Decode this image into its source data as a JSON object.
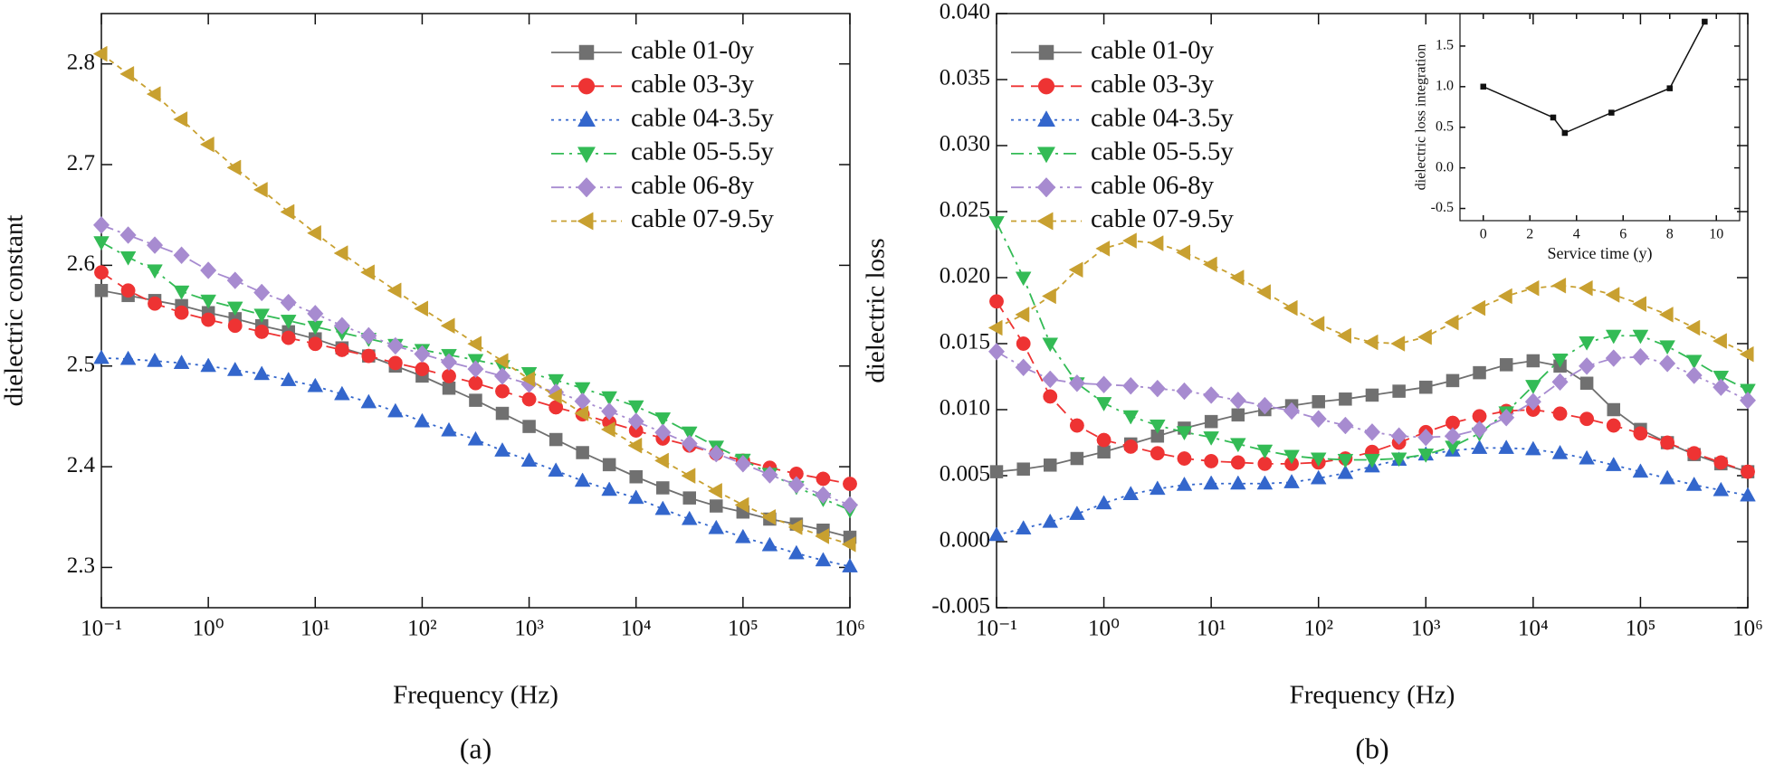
{
  "chart_data": [
    {
      "type": "line",
      "caption": "(a)",
      "x_label": "Frequency (Hz)",
      "y_label": "dielectric constant",
      "xlog": true,
      "legend": "upper right",
      "x": [
        0.1,
        0.178,
        0.316,
        0.562,
        1,
        1.78,
        3.16,
        5.62,
        10,
        17.8,
        31.6,
        56.2,
        100,
        178,
        316,
        562,
        1000,
        1780,
        3160,
        5620,
        10000,
        17800,
        31600,
        56200,
        100000,
        178000,
        316000,
        562000,
        1000000
      ],
      "xlim": [
        0.1,
        1000000
      ],
      "xticks": [
        {
          "value": 0.1,
          "label": "10⁻¹"
        },
        {
          "value": 1,
          "label": "10⁰"
        },
        {
          "value": 10,
          "label": "10¹"
        },
        {
          "value": 100,
          "label": "10²"
        },
        {
          "value": 1000,
          "label": "10³"
        },
        {
          "value": 10000,
          "label": "10⁴"
        },
        {
          "value": 100000,
          "label": "10⁵"
        },
        {
          "value": 1000000,
          "label": "10⁶"
        }
      ],
      "ylim": [
        2.26,
        2.85
      ],
      "yticks": [
        2.3,
        2.4,
        2.5,
        2.6,
        2.7,
        2.8
      ],
      "series": [
        {
          "name": "cable 01-0y",
          "color": "#707070",
          "marker": "square",
          "line_style": "solid",
          "values": [
            2.575,
            2.57,
            2.565,
            2.56,
            2.553,
            2.547,
            2.54,
            2.534,
            2.527,
            2.518,
            2.51,
            2.5,
            2.49,
            2.478,
            2.466,
            2.453,
            2.44,
            2.427,
            2.414,
            2.402,
            2.39,
            2.379,
            2.369,
            2.361,
            2.355,
            2.348,
            2.343,
            2.337,
            2.33
          ]
        },
        {
          "name": "cable 03-3y",
          "color": "#ee3333",
          "marker": "circle",
          "line_style": "dashed",
          "values": [
            2.593,
            2.575,
            2.562,
            2.553,
            2.546,
            2.54,
            2.534,
            2.528,
            2.522,
            2.516,
            2.51,
            2.503,
            2.497,
            2.49,
            2.483,
            2.475,
            2.467,
            2.459,
            2.452,
            2.444,
            2.436,
            2.428,
            2.421,
            2.413,
            2.406,
            2.399,
            2.393,
            2.388,
            2.383
          ]
        },
        {
          "name": "cable 04-3.5y",
          "color": "#3366cc",
          "marker": "triangle-up",
          "line_style": "dotted",
          "values": [
            2.508,
            2.507,
            2.505,
            2.503,
            2.5,
            2.496,
            2.492,
            2.486,
            2.48,
            2.472,
            2.464,
            2.455,
            2.445,
            2.436,
            2.427,
            2.416,
            2.406,
            2.396,
            2.386,
            2.377,
            2.369,
            2.358,
            2.348,
            2.339,
            2.33,
            2.322,
            2.314,
            2.307,
            2.301
          ]
        },
        {
          "name": "cable 05-5.5y",
          "color": "#33bb55",
          "marker": "triangle-down",
          "line_style": "dashdot",
          "values": [
            2.623,
            2.608,
            2.595,
            2.574,
            2.565,
            2.558,
            2.551,
            2.545,
            2.539,
            2.533,
            2.527,
            2.521,
            2.516,
            2.511,
            2.506,
            2.5,
            2.493,
            2.486,
            2.478,
            2.469,
            2.46,
            2.448,
            2.434,
            2.42,
            2.407,
            2.393,
            2.38,
            2.368,
            2.357
          ]
        },
        {
          "name": "cable 06-8y",
          "color": "#a78bd0",
          "marker": "diamond",
          "line_style": "dashdotdot",
          "values": [
            2.64,
            2.63,
            2.62,
            2.61,
            2.595,
            2.585,
            2.573,
            2.563,
            2.552,
            2.54,
            2.53,
            2.52,
            2.512,
            2.504,
            2.497,
            2.49,
            2.482,
            2.474,
            2.465,
            2.455,
            2.445,
            2.434,
            2.423,
            2.413,
            2.403,
            2.392,
            2.382,
            2.372,
            2.362
          ]
        },
        {
          "name": "cable 07-9.5y",
          "color": "#c8a030",
          "marker": "triangle-left",
          "line_style": "shortdash",
          "values": [
            2.81,
            2.79,
            2.77,
            2.745,
            2.72,
            2.697,
            2.675,
            2.653,
            2.632,
            2.612,
            2.593,
            2.575,
            2.557,
            2.54,
            2.522,
            2.505,
            2.487,
            2.47,
            2.453,
            2.437,
            2.421,
            2.406,
            2.391,
            2.376,
            2.362,
            2.35,
            2.34,
            2.331,
            2.323
          ]
        }
      ]
    },
    {
      "type": "line",
      "caption": "(b)",
      "x_label": "Frequency (Hz)",
      "y_label": "dielectric loss",
      "xlog": true,
      "legend": "upper left",
      "x": [
        0.1,
        0.178,
        0.316,
        0.562,
        1,
        1.78,
        3.16,
        5.62,
        10,
        17.8,
        31.6,
        56.2,
        100,
        178,
        316,
        562,
        1000,
        1780,
        3160,
        5620,
        10000,
        17800,
        31600,
        56200,
        100000,
        178000,
        316000,
        562000,
        1000000
      ],
      "xlim": [
        0.1,
        1000000
      ],
      "xticks": [
        {
          "value": 0.1,
          "label": "10⁻¹"
        },
        {
          "value": 1,
          "label": "10⁰"
        },
        {
          "value": 10,
          "label": "10¹"
        },
        {
          "value": 100,
          "label": "10²"
        },
        {
          "value": 1000,
          "label": "10³"
        },
        {
          "value": 10000,
          "label": "10⁴"
        },
        {
          "value": 100000,
          "label": "10⁵"
        },
        {
          "value": 1000000,
          "label": "10⁶"
        }
      ],
      "ylim": [
        -0.005,
        0.04
      ],
      "yticks": [
        -0.005,
        {
          "value": 0,
          "label": "0.000"
        },
        0.005,
        {
          "value": 0.01,
          "label": "0.010"
        },
        0.015,
        {
          "value": 0.02,
          "label": "0.020"
        },
        0.025,
        {
          "value": 0.03,
          "label": "0.030"
        },
        0.035,
        {
          "value": 0.04,
          "label": "0.040"
        }
      ],
      "series": [
        {
          "name": "cable 01-0y",
          "color": "#707070",
          "marker": "square",
          "line_style": "solid",
          "values": [
            0.0053,
            0.0055,
            0.0058,
            0.0063,
            0.0068,
            0.0074,
            0.008,
            0.0086,
            0.0091,
            0.0096,
            0.01,
            0.0103,
            0.0106,
            0.0108,
            0.0111,
            0.0114,
            0.0117,
            0.0122,
            0.0128,
            0.0134,
            0.0137,
            0.0133,
            0.012,
            0.01,
            0.0085,
            0.0075,
            0.0066,
            0.0059,
            0.0053
          ]
        },
        {
          "name": "cable 03-3y",
          "color": "#ee3333",
          "marker": "circle",
          "line_style": "dashed",
          "values": [
            0.0182,
            0.015,
            0.011,
            0.0088,
            0.0077,
            0.0072,
            0.0067,
            0.0063,
            0.0061,
            0.006,
            0.0059,
            0.0059,
            0.006,
            0.0063,
            0.0068,
            0.0075,
            0.0083,
            0.009,
            0.0095,
            0.0099,
            0.01,
            0.0097,
            0.0093,
            0.0088,
            0.0082,
            0.0075,
            0.0067,
            0.006,
            0.0053
          ]
        },
        {
          "name": "cable 04-3.5y",
          "color": "#3366cc",
          "marker": "triangle-up",
          "line_style": "dotted",
          "values": [
            0.0005,
            0.001,
            0.0015,
            0.0021,
            0.0029,
            0.0036,
            0.004,
            0.0043,
            0.0044,
            0.0044,
            0.0044,
            0.0045,
            0.0048,
            0.0052,
            0.0057,
            0.0062,
            0.0066,
            0.0069,
            0.0071,
            0.0071,
            0.007,
            0.0067,
            0.0063,
            0.0058,
            0.0053,
            0.0048,
            0.0043,
            0.0039,
            0.0035
          ]
        },
        {
          "name": "cable 05-5.5y",
          "color": "#33bb55",
          "marker": "triangle-down",
          "line_style": "dashdot",
          "values": [
            0.0242,
            0.02,
            0.015,
            0.012,
            0.0105,
            0.0095,
            0.0088,
            0.0083,
            0.0079,
            0.0074,
            0.0069,
            0.0065,
            0.0063,
            0.0062,
            0.0062,
            0.0063,
            0.0066,
            0.0072,
            0.0082,
            0.0098,
            0.0118,
            0.0138,
            0.0151,
            0.0156,
            0.0156,
            0.0148,
            0.0137,
            0.0125,
            0.0115
          ]
        },
        {
          "name": "cable 06-8y",
          "color": "#a78bd0",
          "marker": "diamond",
          "line_style": "dashdotdot",
          "values": [
            0.0144,
            0.0132,
            0.0123,
            0.012,
            0.0119,
            0.0118,
            0.0116,
            0.0114,
            0.0111,
            0.0107,
            0.0103,
            0.0099,
            0.0093,
            0.0088,
            0.0083,
            0.008,
            0.0079,
            0.008,
            0.0085,
            0.0094,
            0.0106,
            0.0121,
            0.0133,
            0.0139,
            0.014,
            0.0135,
            0.0126,
            0.0117,
            0.0107
          ]
        },
        {
          "name": "cable 07-9.5y",
          "color": "#c8a030",
          "marker": "triangle-left",
          "line_style": "shortdash",
          "values": [
            0.0162,
            0.0172,
            0.0186,
            0.0206,
            0.0222,
            0.0228,
            0.0226,
            0.0219,
            0.021,
            0.02,
            0.0189,
            0.0177,
            0.0165,
            0.0156,
            0.0151,
            0.015,
            0.0155,
            0.0166,
            0.0177,
            0.0186,
            0.0192,
            0.0194,
            0.0192,
            0.0187,
            0.018,
            0.0172,
            0.0162,
            0.0152,
            0.0142
          ]
        }
      ]
    },
    {
      "type": "line",
      "x_label": "Service time (y)",
      "y_label": "dielectric loss integration",
      "xlog": false,
      "x": [
        0,
        3,
        3.5,
        5.5,
        8,
        9.5
      ],
      "xlim": [
        -1,
        11
      ],
      "xticks": [
        0,
        2,
        4,
        6,
        8,
        10
      ],
      "ylim": [
        -0.65,
        1.9
      ],
      "yticks": [
        -0.5,
        {
          "value": 0,
          "label": "0.0"
        },
        0.5,
        {
          "value": 1,
          "label": "1.0"
        },
        1.5
      ],
      "series": [
        {
          "color": "#111111",
          "marker": "square",
          "line_style": "solid",
          "values": [
            1.0,
            0.62,
            0.43,
            0.68,
            0.98,
            1.8
          ]
        }
      ]
    }
  ]
}
